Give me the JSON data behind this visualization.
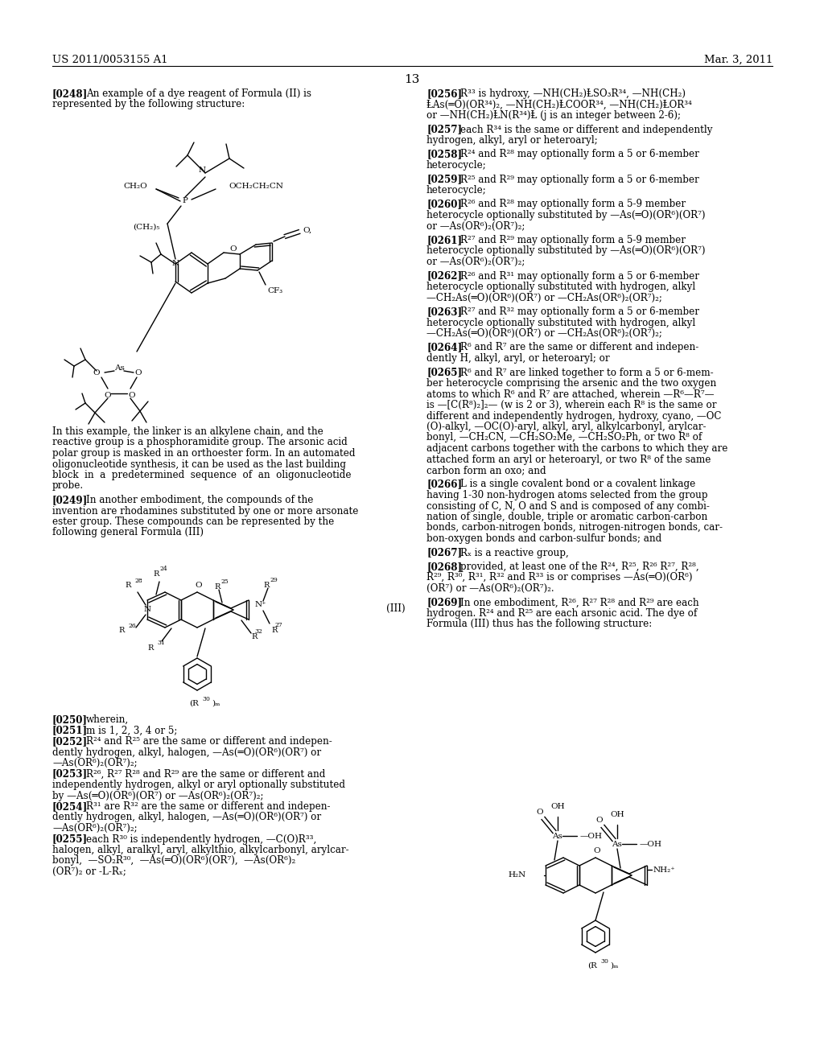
{
  "page_number": "13",
  "header_left": "US 2011/0053155 A1",
  "header_right": "Mar. 3, 2011",
  "background_color": "#ffffff"
}
